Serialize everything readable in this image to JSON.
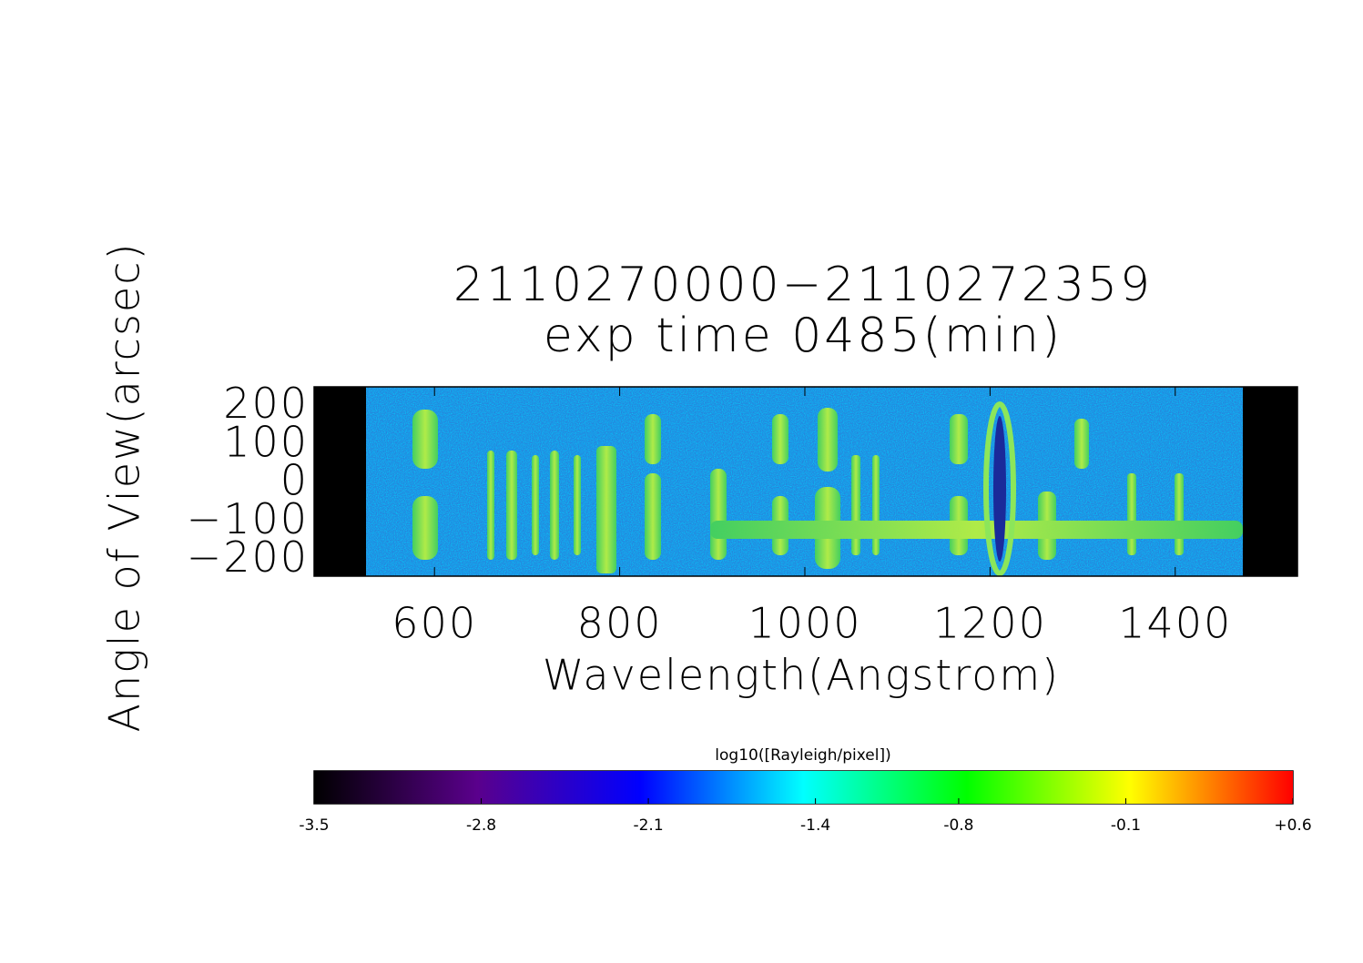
{
  "chart_data": {
    "type": "image",
    "title": "2110270000−2110272359",
    "subtitle": "exp time 0485(min)",
    "x_label": "Wavelength(Angstrom)",
    "y_label": "Angle of View(arcsec)",
    "xlim": [
      470,
      1532
    ],
    "ylim": [
      -241,
      251
    ],
    "xticks": [
      600,
      800,
      1000,
      1200,
      1400
    ],
    "yticks": [
      {
        "value": -200,
        "label": "−200"
      },
      {
        "value": -100,
        "label": "−100"
      },
      0,
      100,
      200
    ],
    "colorbar": {
      "label": "log10([Rayleigh/pixel])",
      "lim": [
        -3.5,
        0.6
      ],
      "ticks": [
        -3.5,
        -2.8,
        -2.1,
        -1.4,
        -0.8,
        -0.1,
        {
          "value": 0.6,
          "label": "+0.6"
        }
      ],
      "colormap": [
        "#000000",
        "#5a008c",
        "#0000ff",
        "#00ffff",
        "#00ff00",
        "#ffff00",
        "#ff0000"
      ]
    }
  }
}
